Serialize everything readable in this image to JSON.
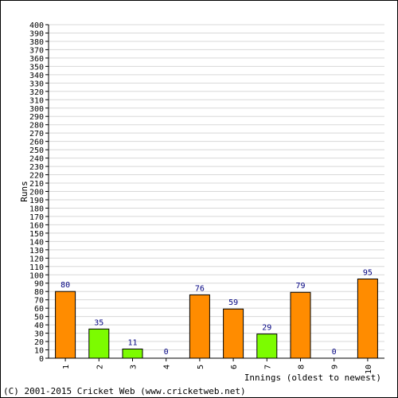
{
  "chart_data": {
    "type": "bar",
    "categories": [
      "1",
      "2",
      "3",
      "4",
      "5",
      "6",
      "7",
      "8",
      "9",
      "10"
    ],
    "values": [
      80,
      35,
      11,
      0,
      76,
      59,
      29,
      79,
      0,
      95
    ],
    "data_labels": [
      "80",
      "35",
      "11",
      "0",
      "76",
      "59",
      "29",
      "79",
      "0",
      "95"
    ],
    "bar_colors": [
      "#ff8c00",
      "#7cfc00",
      "#7cfc00",
      "#ff8c00",
      "#ff8c00",
      "#ff8c00",
      "#7cfc00",
      "#ff8c00",
      "#ff8c00",
      "#ff8c00"
    ],
    "ylabel": "Runs",
    "xlabel": "Innings (oldest to newest)",
    "ylim": [
      0,
      400
    ],
    "ytick_step": 10,
    "grid": true,
    "label_color": "#000080"
  },
  "footer": {
    "copyright": "(C) 2001-2015 Cricket Web (www.cricketweb.net)"
  }
}
